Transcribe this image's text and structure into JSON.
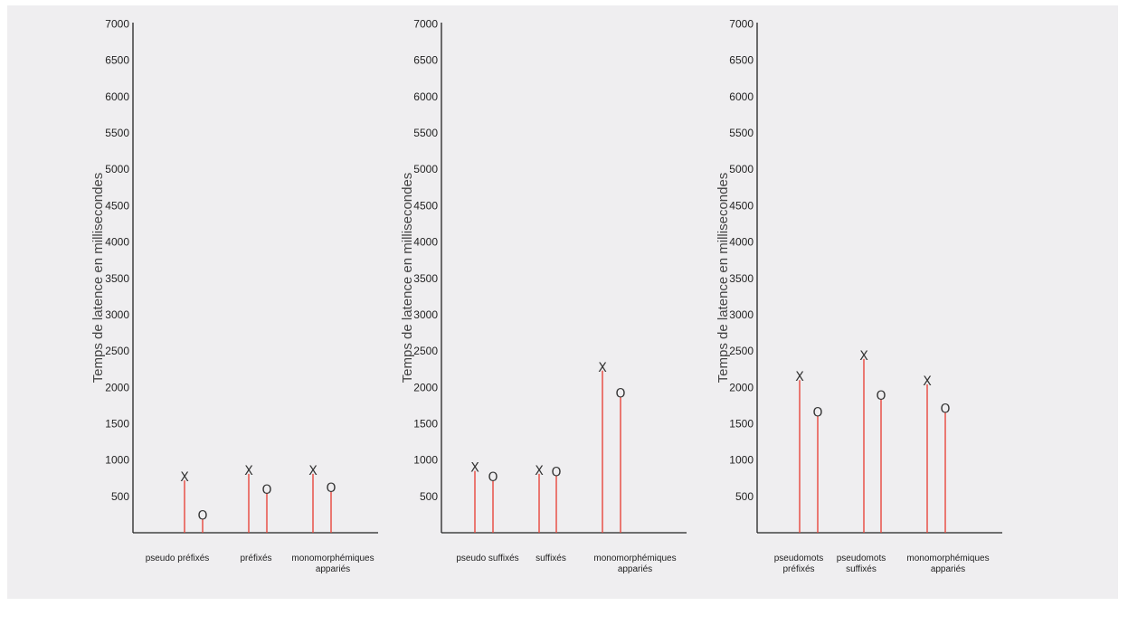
{
  "colors": {
    "stem": "#e8463c",
    "axis": "#222222",
    "marker": "#333333"
  },
  "markers": {
    "x": "X",
    "o": "O"
  },
  "chart_data": [
    {
      "type": "scatter",
      "title": "",
      "ylabel": "Temps de latence en millisecondes",
      "ylim": [
        0,
        7000
      ],
      "yticks": [
        500,
        1000,
        1500,
        2000,
        2500,
        3000,
        3500,
        4000,
        4500,
        5000,
        5500,
        6000,
        6500,
        7000
      ],
      "categories": [
        [
          "pseudo préfixés"
        ],
        [
          "préfixés"
        ],
        [
          "monomorphémiques",
          "appariés"
        ]
      ],
      "series": [
        {
          "marker": "X",
          "values": [
            770,
            860,
            860
          ]
        },
        {
          "marker": "O",
          "values": [
            240,
            600,
            620
          ]
        }
      ]
    },
    {
      "type": "scatter",
      "title": "",
      "ylabel": "Temps de latence en millisecondes",
      "ylim": [
        0,
        7000
      ],
      "yticks": [
        500,
        1000,
        1500,
        2000,
        2500,
        3000,
        3500,
        4000,
        4500,
        5000,
        5500,
        6000,
        6500,
        7000
      ],
      "categories": [
        [
          "pseudo suffixés"
        ],
        [
          "suffixés"
        ],
        [
          "monomorphémiques",
          "appariés"
        ]
      ],
      "series": [
        {
          "marker": "X",
          "values": [
            900,
            860,
            2280
          ]
        },
        {
          "marker": "O",
          "values": [
            770,
            840,
            1920
          ]
        }
      ]
    },
    {
      "type": "scatter",
      "title": "",
      "ylabel": "Temps de latence en millisecondes",
      "ylim": [
        0,
        7000
      ],
      "yticks": [
        500,
        1000,
        1500,
        2000,
        2500,
        3000,
        3500,
        4000,
        4500,
        5000,
        5500,
        6000,
        6500,
        7000
      ],
      "categories": [
        [
          "pseudomots",
          "préfixés"
        ],
        [
          "pseudomots",
          "suffixés"
        ],
        [
          "monomorphémiques",
          "appariés"
        ]
      ],
      "series": [
        {
          "marker": "X",
          "values": [
            2150,
            2440,
            2090
          ]
        },
        {
          "marker": "O",
          "values": [
            1660,
            1890,
            1710
          ]
        }
      ]
    }
  ]
}
